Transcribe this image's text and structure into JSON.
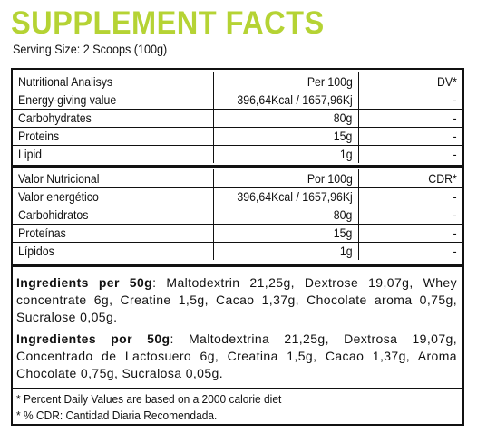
{
  "title": "SUPPLEMENT FACTS",
  "serving_size": "Serving Size: 2 Scoops (100g)",
  "table_en": {
    "header": {
      "name": "Nutritional Analisys",
      "value": "Per 100g",
      "dv": "DV*"
    },
    "rows": [
      {
        "name": "Energy-giving value",
        "value": "396,64Kcal / 1657,96Kj",
        "dv": "-"
      },
      {
        "name": "Carbohydrates",
        "value": "80g",
        "dv": "-"
      },
      {
        "name": "Proteins",
        "value": "15g",
        "dv": "-"
      },
      {
        "name": "Lipid",
        "value": "1g",
        "dv": "-"
      }
    ]
  },
  "table_es": {
    "header": {
      "name": "Valor Nutricional",
      "value": "Por 100g",
      "dv": "CDR*"
    },
    "rows": [
      {
        "name": "Valor energético",
        "value": "396,64Kcal / 1657,96Kj",
        "dv": "-"
      },
      {
        "name": "Carbohidratos",
        "value": "80g",
        "dv": "-"
      },
      {
        "name": "Proteínas",
        "value": "15g",
        "dv": "-"
      },
      {
        "name": "Lípidos",
        "value": "1g",
        "dv": "-"
      }
    ]
  },
  "ingredients_en": {
    "label": "Ingredients per 50g",
    "text": ": Maltodextrin 21,25g, Dextrose 19,07g, Whey concentrate 6g, Creatine 1,5g, Cacao 1,37g, Chocolate aroma 0,75g, Sucralose 0,05g."
  },
  "ingredients_es": {
    "label": "Ingredientes por 50g",
    "text": ": Maltodextrina 21,25g, Dextrosa 19,07g, Concentrado de Lactosuero 6g, Creatina 1,5g, Cacao 1,37g, Aroma Chocolate 0,75g, Sucralosa 0,05g."
  },
  "footnotes": [
    "* Percent Daily Values are based on a 2000 calorie diet",
    "* % CDR: Cantidad Diaria Recomendada."
  ],
  "colors": {
    "title": "#b5d334",
    "text": "#111111",
    "border": "#111111"
  }
}
